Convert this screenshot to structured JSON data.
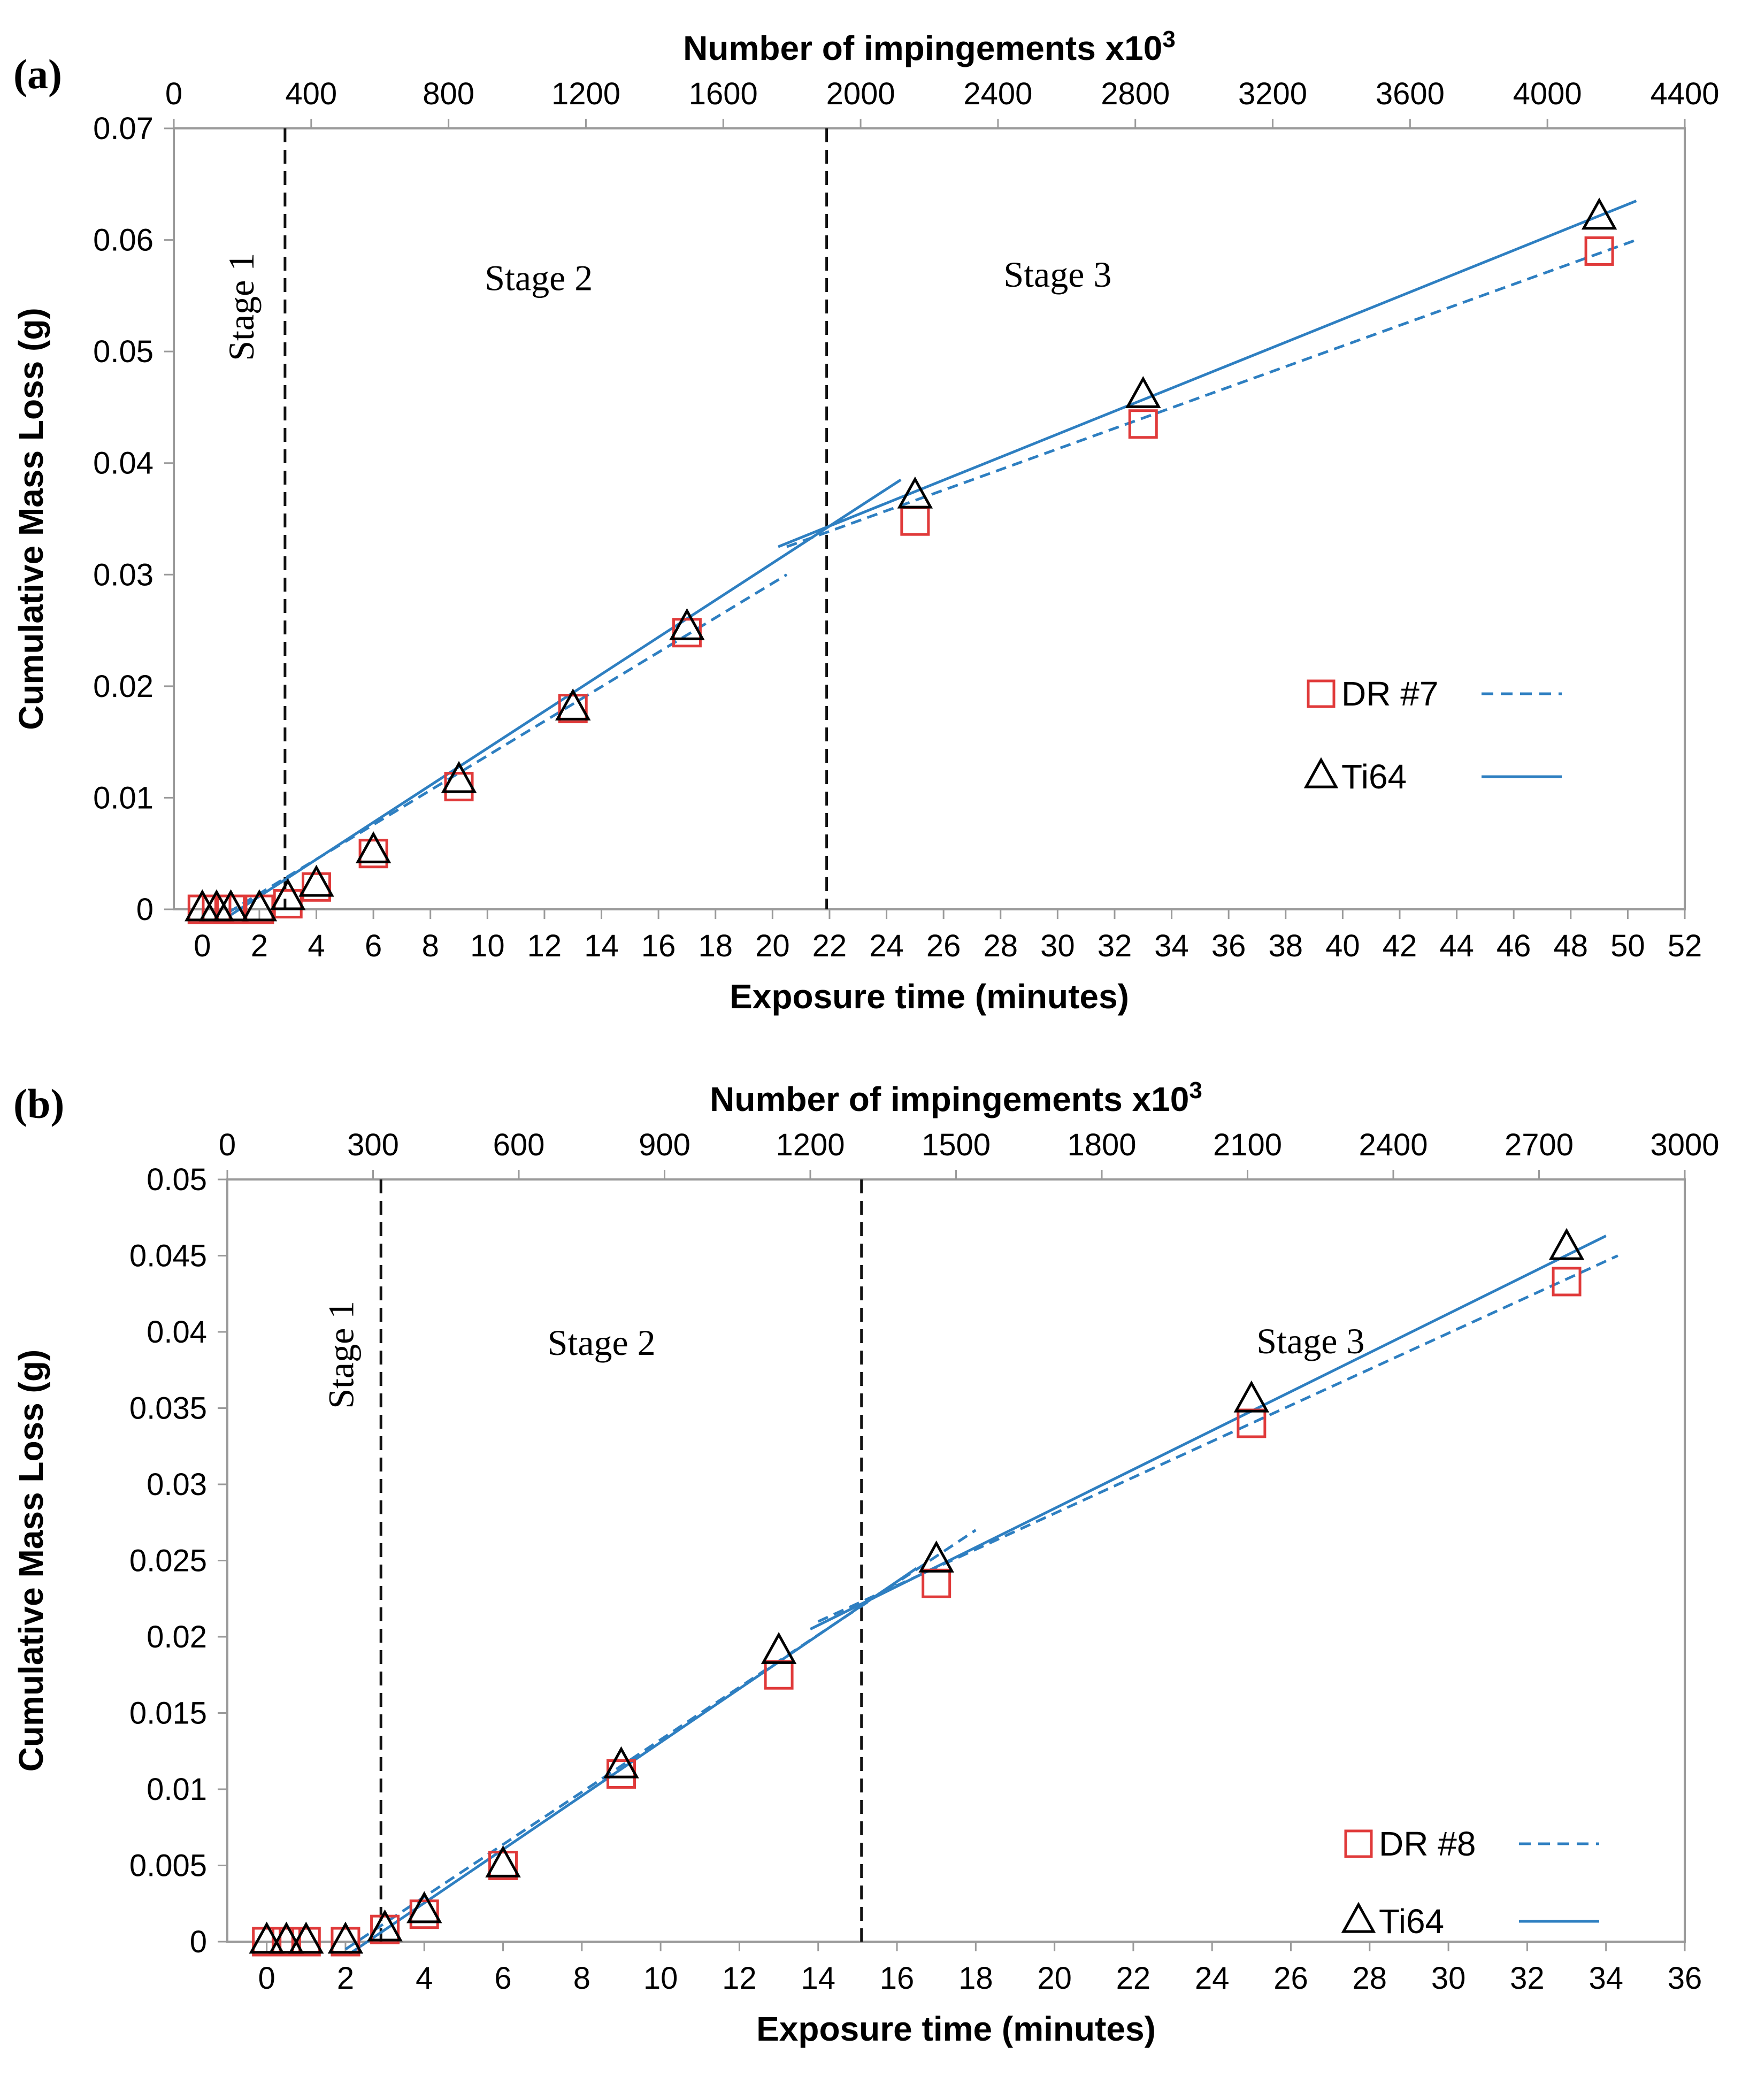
{
  "chart_data": [
    {
      "type": "scatter",
      "panel": "(a)",
      "xlabel": "Exposure time (minutes)",
      "x2label_base": "Number of impingements x10",
      "x2label_exp": "3",
      "ylabel": "Cumulative Mass Loss (g)",
      "xlim": [
        -1,
        52
      ],
      "xticks": [
        0,
        2,
        4,
        6,
        8,
        10,
        12,
        14,
        16,
        18,
        20,
        22,
        24,
        26,
        28,
        30,
        32,
        34,
        36,
        38,
        40,
        42,
        44,
        46,
        48,
        50,
        52
      ],
      "x2lim": [
        0,
        4400
      ],
      "x2ticks": [
        0,
        400,
        800,
        1200,
        1600,
        2000,
        2400,
        2800,
        3200,
        3600,
        4000,
        4400
      ],
      "ylim": [
        0,
        0.07
      ],
      "yticks": [
        0,
        0.01,
        0.02,
        0.03,
        0.04,
        0.05,
        0.06,
        0.07
      ],
      "ytick_labels": [
        "0",
        "0.01",
        "0.02",
        "0.03",
        "0.04",
        "0.05",
        "0.06",
        "0.07"
      ],
      "stage_boundaries": [
        2.9,
        21.9
      ],
      "stage_labels": [
        "Stage 1",
        "Stage 2",
        "Stage 3"
      ],
      "stage_label_pos": [
        [
          1.8,
          0.054,
          true
        ],
        [
          11.8,
          0.0555,
          false
        ],
        [
          30,
          0.0558,
          false
        ]
      ],
      "series": [
        {
          "name": "DR #7",
          "marker": "square",
          "line": "dashed",
          "x": [
            0,
            0.5,
            1,
            2,
            3,
            4,
            6,
            9,
            13,
            17,
            25,
            33,
            49
          ],
          "y": [
            0,
            0,
            0,
            0,
            0.0005,
            0.002,
            0.005,
            0.011,
            0.018,
            0.0248,
            0.0348,
            0.0435,
            0.059
          ],
          "fit": [
            [
              [
                0.9,
                -0.0003
              ],
              [
                20.5,
                0.03
              ]
            ],
            [
              [
                20.5,
                0.0325
              ],
              [
                50.3,
                0.06
              ]
            ]
          ]
        },
        {
          "name": "Ti64",
          "marker": "triangle",
          "line": "solid",
          "x": [
            0,
            0.5,
            1,
            2,
            3,
            4,
            6,
            9,
            13,
            17,
            25,
            33,
            49
          ],
          "y": [
            0,
            0,
            0,
            0,
            0.001,
            0.0022,
            0.0052,
            0.0115,
            0.018,
            0.0252,
            0.037,
            0.046,
            0.062
          ],
          "fit": [
            [
              [
                1,
                -0.0005
              ],
              [
                24.5,
                0.0385
              ]
            ],
            [
              [
                20.2,
                0.0325
              ],
              [
                50.3,
                0.0635
              ]
            ]
          ]
        }
      ],
      "legend": [
        {
          "label": "DR #7",
          "marker": "square",
          "line": "dashed"
        },
        {
          "label": "Ti64",
          "marker": "triangle",
          "line": "solid"
        }
      ]
    },
    {
      "type": "scatter",
      "panel": "(b)",
      "xlabel": "Exposure time (minutes)",
      "x2label_base": "Number of impingements x10",
      "x2label_exp": "3",
      "ylabel": "Cumulative Mass Loss (g)",
      "xlim": [
        -1,
        36
      ],
      "xticks": [
        0,
        2,
        4,
        6,
        8,
        10,
        12,
        14,
        16,
        18,
        20,
        22,
        24,
        26,
        28,
        30,
        32,
        34,
        36
      ],
      "x2lim": [
        0,
        3000
      ],
      "x2ticks": [
        0,
        300,
        600,
        900,
        1200,
        1500,
        1800,
        2100,
        2400,
        2700,
        3000
      ],
      "ylim": [
        0,
        0.05
      ],
      "yticks": [
        0,
        0.005,
        0.01,
        0.015,
        0.02,
        0.025,
        0.03,
        0.035,
        0.04,
        0.045,
        0.05
      ],
      "ytick_labels": [
        "0",
        "0.005",
        "0.01",
        "0.015",
        "0.02",
        "0.025",
        "0.03",
        "0.035",
        "0.04",
        "0.045",
        "0.05"
      ],
      "stage_boundaries": [
        2.9,
        15.1
      ],
      "stage_labels": [
        "Stage 1",
        "Stage 2",
        "Stage 3"
      ],
      "stage_label_pos": [
        [
          2.2,
          0.0385,
          true
        ],
        [
          8.5,
          0.0385,
          false
        ],
        [
          26.5,
          0.0386,
          false
        ]
      ],
      "series": [
        {
          "name": "DR #8",
          "marker": "square",
          "line": "dashed",
          "x": [
            0,
            0.5,
            1,
            2,
            3,
            4,
            6,
            9,
            13,
            17,
            25,
            33
          ],
          "y": [
            0,
            0,
            0,
            0,
            0.0008,
            0.0018,
            0.005,
            0.011,
            0.0175,
            0.0235,
            0.034,
            0.0433
          ],
          "fit": [
            [
              [
                2,
                -0.0005
              ],
              [
                18,
                0.027
              ]
            ],
            [
              [
                14,
                0.021
              ],
              [
                34.3,
                0.045
              ]
            ]
          ]
        },
        {
          "name": "Ti64",
          "marker": "triangle",
          "line": "solid",
          "x": [
            0,
            0.5,
            1,
            2,
            3,
            4,
            6,
            9,
            13,
            17,
            25,
            33
          ],
          "y": [
            0,
            0,
            0,
            0,
            0.0008,
            0.002,
            0.005,
            0.0115,
            0.019,
            0.025,
            0.0355,
            0.0455
          ],
          "fit": [
            [
              [
                2.1,
                -0.0008
              ],
              [
                16.5,
                0.0245
              ]
            ],
            [
              [
                13.8,
                0.0205
              ],
              [
                34,
                0.0463
              ]
            ]
          ]
        }
      ],
      "legend": [
        {
          "label": "DR #8",
          "marker": "square",
          "line": "dashed"
        },
        {
          "label": "Ti64",
          "marker": "triangle",
          "line": "solid"
        }
      ]
    }
  ]
}
